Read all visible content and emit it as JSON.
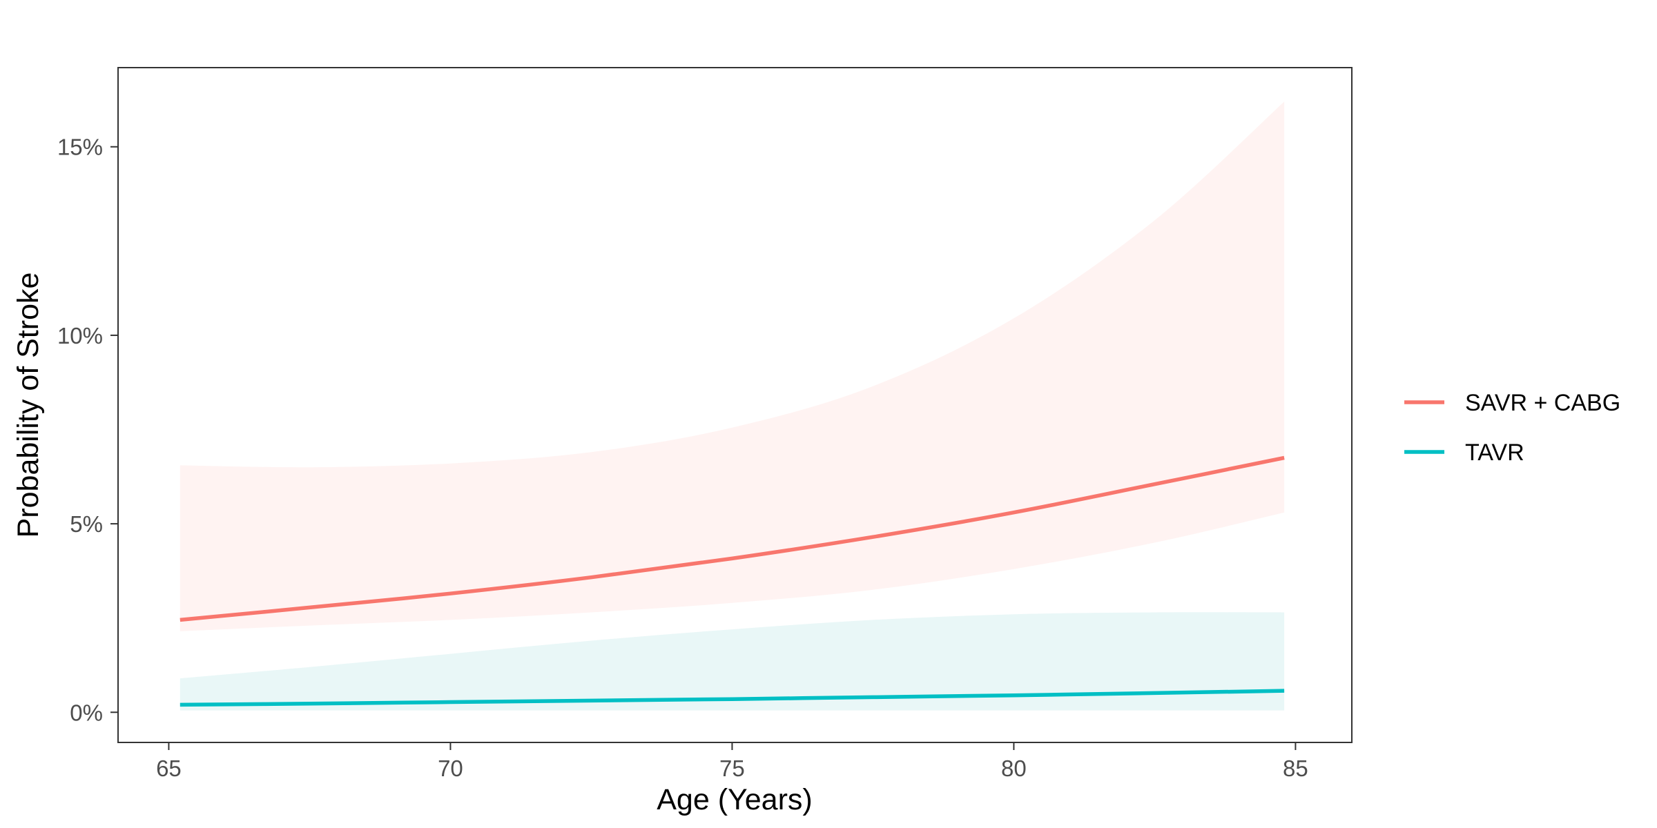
{
  "chart_data": {
    "type": "line",
    "title": "",
    "xlabel": "Age (Years)",
    "ylabel": "Probability of Stroke",
    "xlim": [
      64.1,
      86.0
    ],
    "ylim": [
      -0.8,
      17.1
    ],
    "x_ticks": [
      65,
      70,
      75,
      80,
      85
    ],
    "x_tick_labels": [
      "65",
      "70",
      "75",
      "80",
      "85"
    ],
    "y_ticks": [
      0,
      5,
      10,
      15
    ],
    "y_tick_labels": [
      "0%",
      "5%",
      "10%",
      "15%"
    ],
    "grid": false,
    "legend_position": "right",
    "series": [
      {
        "name": "SAVR + CABG",
        "color": "#F8766D",
        "band_color": "#FFF3F2",
        "x": [
          65.2,
          67.5,
          70,
          72.5,
          75,
          77.5,
          80,
          82.5,
          84.8
        ],
        "y": [
          2.45,
          2.78,
          3.15,
          3.58,
          4.08,
          4.65,
          5.3,
          6.05,
          6.75
        ],
        "lower": [
          2.15,
          2.3,
          2.45,
          2.65,
          2.9,
          3.25,
          3.8,
          4.5,
          5.3
        ],
        "upper": [
          6.55,
          6.5,
          6.6,
          6.9,
          7.55,
          8.65,
          10.45,
          13.05,
          16.2
        ]
      },
      {
        "name": "TAVR",
        "color": "#00BFC4",
        "band_color": "#E9F7F7",
        "x": [
          65.2,
          67.5,
          70,
          72.5,
          75,
          77.5,
          80,
          82.5,
          84.8
        ],
        "y": [
          0.2,
          0.23,
          0.27,
          0.31,
          0.35,
          0.4,
          0.45,
          0.51,
          0.57
        ],
        "lower": [
          0.05,
          0.05,
          0.05,
          0.05,
          0.05,
          0.05,
          0.05,
          0.05,
          0.05
        ],
        "upper": [
          0.9,
          1.2,
          1.55,
          1.9,
          2.2,
          2.45,
          2.6,
          2.65,
          2.65
        ]
      }
    ],
    "overlap_color": "#E9F0EF"
  }
}
